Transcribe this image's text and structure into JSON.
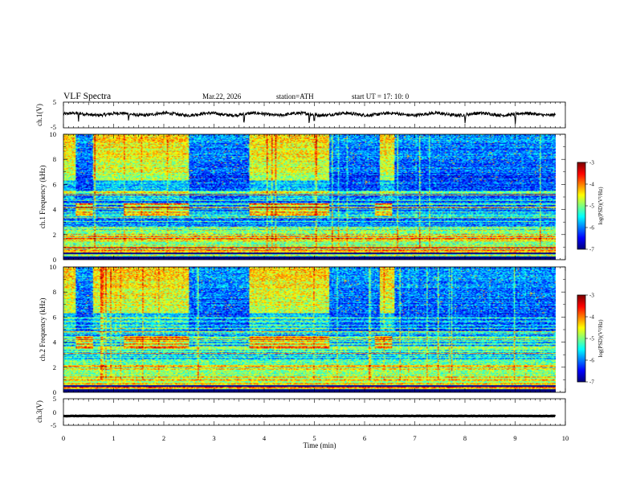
{
  "header": {
    "title": "VLF  Spectra",
    "date": "Mar.22, 2026",
    "station": "station=ATH",
    "start": "start  UT  =   17: 10: 0"
  },
  "chart_data": [
    {
      "type": "line",
      "title": "",
      "xlabel": "",
      "ylabel": "ch.1(V)",
      "ylim": [
        -5,
        5
      ],
      "ytick_labels": [
        "5",
        "-5"
      ],
      "xlim": [
        0,
        10
      ],
      "description_values": {
        "baseline": 0.3,
        "noise_amplitude": 0.6,
        "spike_times_min": [
          0.3,
          1.3,
          3.6,
          4.9,
          5.0,
          8.0,
          9.0
        ]
      }
    },
    {
      "type": "heatmap",
      "title": "",
      "xlabel": "",
      "ylabel": "ch.1  Frequency (kHz)",
      "xlim": [
        0,
        10
      ],
      "ylim": [
        0,
        10
      ],
      "ytick_labels": [
        "0",
        "2",
        "4",
        "6",
        "8",
        "10"
      ],
      "colorbar": {
        "label": "log(PSD)(V²/Hz)",
        "range": [
          -7,
          -3
        ],
        "tick_labels": [
          "-3",
          "-4",
          "-5",
          "-6",
          "-7"
        ]
      },
      "bright_intervals_min": [
        [
          0,
          0.25
        ],
        [
          0.6,
          1.2
        ],
        [
          1.2,
          2.5
        ],
        [
          3.7,
          5.3
        ],
        [
          6.3,
          6.6
        ]
      ],
      "quiet_intervals_min": [
        [
          2.5,
          3.7
        ],
        [
          5.3,
          6.3
        ],
        [
          6.6,
          9.8
        ]
      ],
      "band_4kHz_intervals_min": [
        [
          0.25,
          0.6
        ],
        [
          1.2,
          2.5
        ],
        [
          3.7,
          5.3
        ],
        [
          6.2,
          6.55
        ]
      ]
    },
    {
      "type": "heatmap",
      "title": "",
      "xlabel": "",
      "ylabel": "ch.2  Frequency (kHz)",
      "xlim": [
        0,
        10
      ],
      "ylim": [
        0,
        10
      ],
      "ytick_labels": [
        "0",
        "2",
        "4",
        "6",
        "8",
        "10"
      ],
      "colorbar": {
        "label": "log(PSD)(V²/Hz)",
        "range": [
          -7,
          -3
        ],
        "tick_labels": [
          "-3",
          "-4",
          "-5",
          "-6",
          "-7"
        ]
      },
      "bright_intervals_min": [
        [
          0,
          0.25
        ],
        [
          0.6,
          1.2
        ],
        [
          1.2,
          2.5
        ],
        [
          3.7,
          5.3
        ],
        [
          6.3,
          6.6
        ]
      ],
      "quiet_intervals_min": [
        [
          2.5,
          3.7
        ],
        [
          5.3,
          6.3
        ],
        [
          6.6,
          9.8
        ]
      ],
      "band_4kHz_intervals_min": [
        [
          0.25,
          0.6
        ],
        [
          1.2,
          2.5
        ],
        [
          3.7,
          5.3
        ],
        [
          6.2,
          6.55
        ]
      ]
    },
    {
      "type": "line",
      "title": "",
      "xlabel": "Time  (min)",
      "ylabel": "ch.3(V)",
      "ylim": [
        -5,
        5
      ],
      "ytick_labels": [
        "5",
        "0",
        "-5"
      ],
      "xlim": [
        0,
        10
      ],
      "x_tick_labels": [
        "0",
        "1",
        "2",
        "3",
        "4",
        "5",
        "6",
        "7",
        "8",
        "9",
        "10"
      ],
      "description_values": {
        "baseline": -1.5,
        "noise_amplitude": 0.15
      }
    }
  ]
}
